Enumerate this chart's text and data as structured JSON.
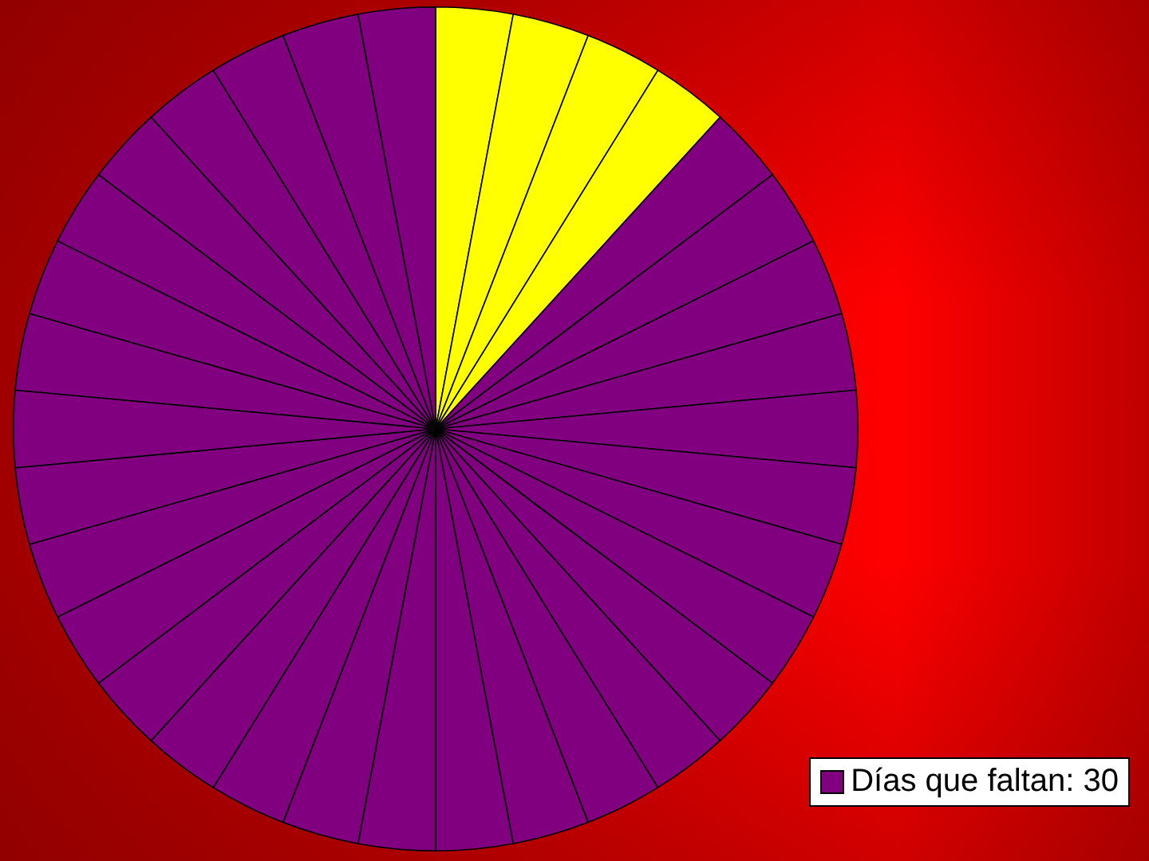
{
  "chart_data": {
    "type": "pie",
    "categories": [
      null,
      null,
      null,
      null,
      "Días que faltan: 30",
      null,
      null,
      null,
      null,
      null,
      null,
      null,
      null,
      null,
      null,
      null,
      null,
      null,
      null,
      null,
      null,
      null,
      null,
      null,
      null,
      null,
      null,
      null,
      null,
      null,
      null,
      null,
      null,
      null
    ],
    "values": [
      2.94,
      2.94,
      2.94,
      2.94,
      2.94,
      2.94,
      2.94,
      2.94,
      2.94,
      2.94,
      2.94,
      2.94,
      2.94,
      2.94,
      2.94,
      2.94,
      2.94,
      2.94,
      2.94,
      2.94,
      2.94,
      2.94,
      2.94,
      2.94,
      2.94,
      2.94,
      2.94,
      2.94,
      2.94,
      2.94,
      2.94,
      2.94,
      2.94,
      2.94
    ],
    "colors": [
      "#ffff00",
      "#ffff00",
      "#ffff00",
      "#ffff00",
      "#800080",
      "#800080",
      "#800080",
      "#800080",
      "#800080",
      "#800080",
      "#800080",
      "#800080",
      "#800080",
      "#800080",
      "#800080",
      "#800080",
      "#800080",
      "#800080",
      "#800080",
      "#800080",
      "#800080",
      "#800080",
      "#800080",
      "#800080",
      "#800080",
      "#800080",
      "#800080",
      "#800080",
      "#800080",
      "#800080",
      "#800080",
      "#800080",
      "#800080",
      "#800080"
    ],
    "legend": "bottom right"
  }
}
